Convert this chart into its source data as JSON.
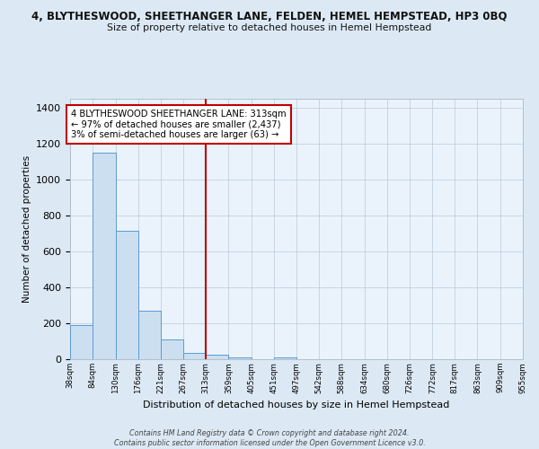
{
  "title_main": "4, BLYTHESWOOD, SHEETHANGER LANE, FELDEN, HEMEL HEMPSTEAD, HP3 0BQ",
  "title_sub": "Size of property relative to detached houses in Hemel Hempstead",
  "xlabel": "Distribution of detached houses by size in Hemel Hempstead",
  "ylabel": "Number of detached properties",
  "bin_edges": [
    38,
    84,
    130,
    176,
    221,
    267,
    313,
    359,
    405,
    451,
    497,
    542,
    588,
    634,
    680,
    726,
    772,
    817,
    863,
    909,
    955
  ],
  "bin_counts": [
    192,
    1148,
    715,
    268,
    112,
    35,
    26,
    8,
    0,
    12,
    0,
    0,
    0,
    0,
    0,
    0,
    0,
    0,
    0,
    0
  ],
  "bar_color": "#ccdff0",
  "bar_edge_color": "#5b9bd5",
  "vline_x": 313,
  "vline_color": "#c00000",
  "annotation_text": "4 BLYTHESWOOD SHEETHANGER LANE: 313sqm\n← 97% of detached houses are smaller (2,437)\n3% of semi-detached houses are larger (63) →",
  "annotation_box_color": "white",
  "annotation_box_edge": "#c00000",
  "ylim": [
    0,
    1450
  ],
  "yticks": [
    0,
    200,
    400,
    600,
    800,
    1000,
    1200,
    1400
  ],
  "tick_labels": [
    "38sqm",
    "84sqm",
    "130sqm",
    "176sqm",
    "221sqm",
    "267sqm",
    "313sqm",
    "359sqm",
    "405sqm",
    "451sqm",
    "497sqm",
    "542sqm",
    "588sqm",
    "634sqm",
    "680sqm",
    "726sqm",
    "772sqm",
    "817sqm",
    "863sqm",
    "909sqm",
    "955sqm"
  ],
  "footer_text": "Contains HM Land Registry data © Crown copyright and database right 2024.\nContains public sector information licensed under the Open Government Licence v3.0.",
  "bg_color": "#dce9f5",
  "plot_bg_color": "#eaf3fb"
}
